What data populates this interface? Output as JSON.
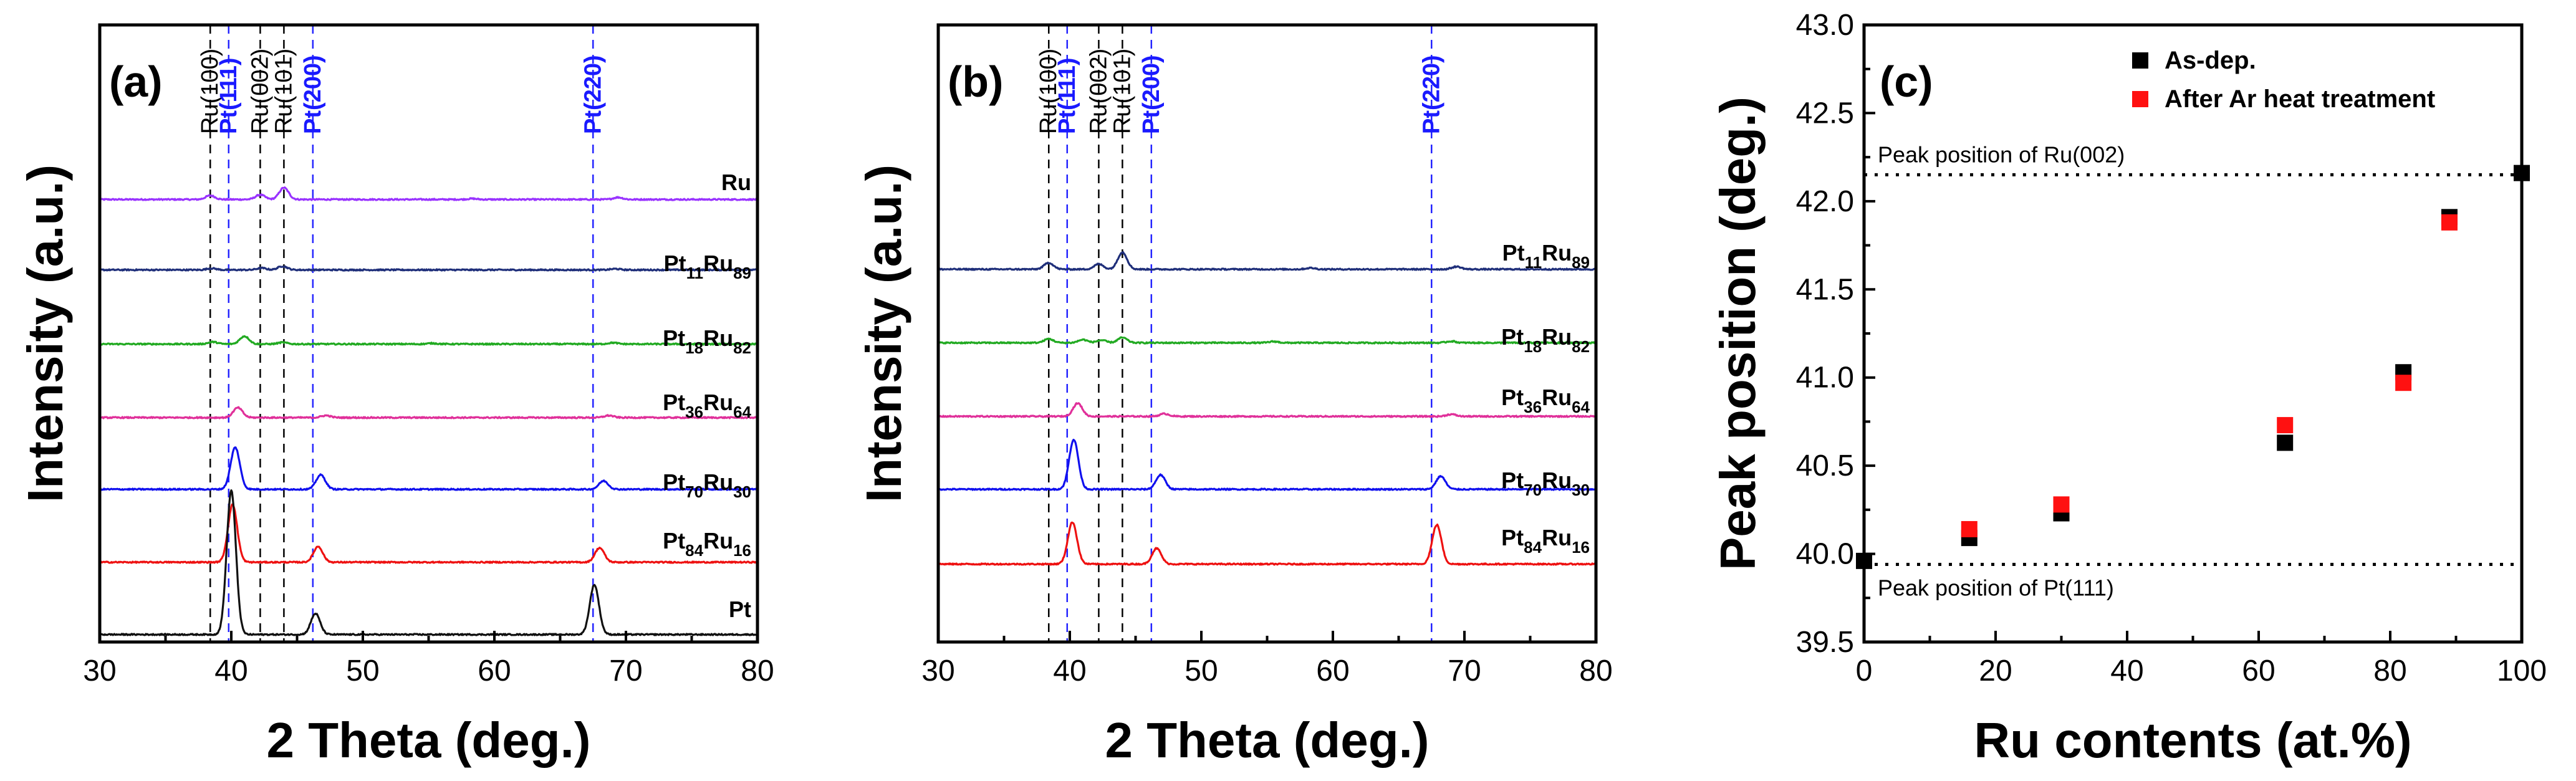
{
  "chart_data": [
    {
      "panel": "(a)",
      "type": "line",
      "xlabel": "2 Theta (deg.)",
      "ylabel": "Intensity (a.u.)",
      "xlim": [
        30,
        80
      ],
      "xticks": [
        "30",
        "40",
        "50",
        "60",
        "70",
        "80"
      ],
      "reference_lines": [
        {
          "label": "Ru(100)",
          "x": 38.4,
          "color": "black"
        },
        {
          "label": "Pt(111)",
          "x": 39.8,
          "color": "blue"
        },
        {
          "label": "Ru(002)",
          "x": 42.2,
          "color": "black"
        },
        {
          "label": "Ru(101)",
          "x": 44.0,
          "color": "black"
        },
        {
          "label": "Pt(200)",
          "x": 46.2,
          "color": "blue"
        },
        {
          "label": "Pt(220)",
          "x": 67.5,
          "color": "blue"
        }
      ],
      "series": [
        {
          "base": "Ru",
          "sub": "",
          "base2": "",
          "sub2": "",
          "color": "#9933ff",
          "offset": 6,
          "peaks": [
            [
              38.4,
              0.15
            ],
            [
              42.2,
              0.18
            ],
            [
              44.0,
              0.45
            ],
            [
              58.3,
              0.03
            ],
            [
              69.4,
              0.08
            ]
          ]
        },
        {
          "base": "Pt",
          "sub": "11",
          "base2": "Ru",
          "sub2": "89",
          "color": "#1f2f7a",
          "offset": 5,
          "peaks": [
            [
              38.5,
              0.06
            ],
            [
              42.3,
              0.07
            ],
            [
              43.9,
              0.14
            ],
            [
              69.2,
              0.04
            ]
          ]
        },
        {
          "base": "Pt",
          "sub": "18",
          "base2": "Ru",
          "sub2": "82",
          "color": "#22aa22",
          "offset": 4,
          "peaks": [
            [
              38.6,
              0.08
            ],
            [
              41.0,
              0.3
            ],
            [
              43.9,
              0.06
            ],
            [
              55.3,
              0.03
            ],
            [
              69.0,
              0.05
            ]
          ]
        },
        {
          "base": "Pt",
          "sub": "36",
          "base2": "Ru",
          "sub2": "64",
          "color": "#e0309a",
          "offset": 3,
          "peaks": [
            [
              40.5,
              0.38
            ],
            [
              47.2,
              0.08
            ],
            [
              68.7,
              0.08
            ]
          ]
        },
        {
          "base": "Pt",
          "sub": "70",
          "base2": "Ru",
          "sub2": "30",
          "color": "#1010ee",
          "offset": 2,
          "peaks": [
            [
              40.3,
              1.6
            ],
            [
              46.8,
              0.55
            ],
            [
              68.3,
              0.32
            ]
          ]
        },
        {
          "base": "Pt",
          "sub": "84",
          "base2": "Ru",
          "sub2": "16",
          "color": "#ee1111",
          "offset": 1,
          "peaks": [
            [
              40.1,
              2.2
            ],
            [
              46.6,
              0.6
            ],
            [
              68.0,
              0.55
            ]
          ]
        },
        {
          "base": "Pt",
          "sub": "",
          "base2": "",
          "sub2": "",
          "color": "#111111",
          "offset": 0,
          "peaks": [
            [
              40.0,
              5.5
            ],
            [
              46.4,
              0.8
            ],
            [
              67.6,
              1.9
            ]
          ]
        }
      ]
    },
    {
      "panel": "(b)",
      "type": "line",
      "xlabel": "2 Theta (deg.)",
      "ylabel": "Intensity (a.u.)",
      "xlim": [
        30,
        80
      ],
      "xticks": [
        "30",
        "40",
        "50",
        "60",
        "70",
        "80"
      ],
      "reference_lines": [
        {
          "label": "Ru(100)",
          "x": 38.4,
          "color": "black"
        },
        {
          "label": "Pt(111)",
          "x": 39.8,
          "color": "blue"
        },
        {
          "label": "Ru(002)",
          "x": 42.2,
          "color": "black"
        },
        {
          "label": "Ru(101)",
          "x": 44.0,
          "color": "black"
        },
        {
          "label": "Pt(200)",
          "x": 46.2,
          "color": "blue"
        },
        {
          "label": "Pt(220)",
          "x": 67.5,
          "color": "blue"
        }
      ],
      "series": [
        {
          "base": "Pt",
          "sub": "11",
          "base2": "Ru",
          "sub2": "89",
          "color": "#1f2f7a",
          "offset": 5,
          "peaks": [
            [
              38.4,
              0.25
            ],
            [
              42.2,
              0.2
            ],
            [
              44.0,
              0.65
            ],
            [
              58.3,
              0.05
            ],
            [
              69.4,
              0.1
            ]
          ]
        },
        {
          "base": "Pt",
          "sub": "18",
          "base2": "Ru",
          "sub2": "82",
          "color": "#22aa22",
          "offset": 4,
          "peaks": [
            [
              38.4,
              0.15
            ],
            [
              41.0,
              0.12
            ],
            [
              42.4,
              0.1
            ],
            [
              44.0,
              0.2
            ],
            [
              55.5,
              0.05
            ],
            [
              69.0,
              0.06
            ]
          ]
        },
        {
          "base": "Pt",
          "sub": "36",
          "base2": "Ru",
          "sub2": "64",
          "color": "#e0309a",
          "offset": 3,
          "peaks": [
            [
              40.6,
              0.5
            ],
            [
              47.2,
              0.1
            ],
            [
              69.0,
              0.08
            ]
          ]
        },
        {
          "base": "Pt",
          "sub": "70",
          "base2": "Ru",
          "sub2": "30",
          "color": "#1010ee",
          "offset": 2,
          "peaks": [
            [
              40.3,
              1.9
            ],
            [
              46.9,
              0.55
            ],
            [
              68.2,
              0.5
            ]
          ]
        },
        {
          "base": "Pt",
          "sub": "84",
          "base2": "Ru",
          "sub2": "16",
          "color": "#ee1111",
          "offset": 1,
          "peaks": [
            [
              40.2,
              1.6
            ],
            [
              46.6,
              0.6
            ],
            [
              67.9,
              1.5
            ]
          ]
        }
      ]
    },
    {
      "panel": "(c)",
      "type": "scatter",
      "xlabel": "Ru contents (at.%)",
      "ylabel": "Peak position (deg.)",
      "xlim": [
        0,
        100
      ],
      "ylim": [
        39.5,
        43.0
      ],
      "xticks": [
        "0",
        "20",
        "40",
        "60",
        "80",
        "100"
      ],
      "yticks": [
        "39.5",
        "40.0",
        "40.5",
        "41.0",
        "41.5",
        "42.0",
        "42.5",
        "43.0"
      ],
      "reference_lines": [
        {
          "label": "Peak position of Ru(002)",
          "y": 42.15
        },
        {
          "label": "Peak position of Pt(111)",
          "y": 39.94
        }
      ],
      "series": [
        {
          "name": "As-dep.",
          "color": "#000000",
          "x": [
            0,
            16,
            30,
            64,
            82,
            89,
            100
          ],
          "y": [
            39.96,
            40.09,
            40.23,
            40.63,
            41.03,
            41.91,
            42.16
          ]
        },
        {
          "name": "After Ar heat treatment",
          "color": "#ff1111",
          "x": [
            16,
            30,
            64,
            82,
            89
          ],
          "y": [
            40.14,
            40.28,
            40.73,
            40.97,
            41.88
          ]
        }
      ]
    }
  ]
}
